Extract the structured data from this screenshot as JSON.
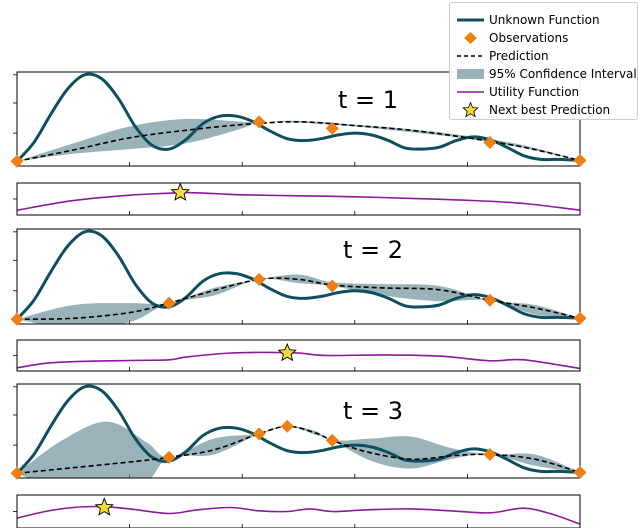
{
  "colors": {
    "unknown": "#0e4f5f",
    "observation": "#ef7f12",
    "prediction": "#000000",
    "ci": "#6f939d",
    "utility": "#8b1a9b",
    "star": "#f5dc38"
  },
  "legend": {
    "unknown": "Unknown Function",
    "observations": "Observations",
    "prediction": "Prediction",
    "ci": "95% Confidence Interval",
    "utility": "Utility Function",
    "next": "Next best Prediction"
  },
  "chart_data": [
    {
      "type": "line",
      "panel_label": "t = 1",
      "xlim": [
        0,
        1
      ],
      "ylim": [
        0,
        1
      ],
      "unknown": {
        "x": [
          0,
          0.03,
          0.06,
          0.09,
          0.12,
          0.15,
          0.18,
          0.21,
          0.24,
          0.27,
          0.3,
          0.33,
          0.36,
          0.39,
          0.42,
          0.45,
          0.48,
          0.51,
          0.54,
          0.57,
          0.6,
          0.63,
          0.66,
          0.69,
          0.72,
          0.75,
          0.78,
          0.81,
          0.84,
          0.87,
          0.9,
          0.93,
          0.96,
          1
        ],
        "y": [
          0.05,
          0.25,
          0.55,
          0.82,
          0.97,
          0.93,
          0.72,
          0.42,
          0.22,
          0.18,
          0.28,
          0.45,
          0.53,
          0.53,
          0.47,
          0.37,
          0.29,
          0.27,
          0.29,
          0.33,
          0.35,
          0.33,
          0.27,
          0.19,
          0.18,
          0.2,
          0.27,
          0.31,
          0.28,
          0.2,
          0.11,
          0.07,
          0.07,
          0.06
        ]
      },
      "prediction": {
        "x": [
          0,
          0.1,
          0.2,
          0.3,
          0.4,
          0.5,
          0.6,
          0.7,
          0.8,
          0.9,
          1
        ],
        "y": [
          0.05,
          0.17,
          0.3,
          0.38,
          0.44,
          0.47,
          0.43,
          0.38,
          0.3,
          0.2,
          0.06
        ]
      },
      "ci": {
        "x": [
          0,
          0.1,
          0.2,
          0.3,
          0.4,
          0.43,
          0.5,
          0.6,
          0.7,
          0.8,
          0.9,
          1
        ],
        "lower": [
          0.05,
          0.13,
          0.18,
          0.24,
          0.4,
          0.47,
          0.46,
          0.42,
          0.36,
          0.29,
          0.19,
          0.06
        ],
        "upper": [
          0.05,
          0.24,
          0.42,
          0.5,
          0.47,
          0.47,
          0.48,
          0.44,
          0.39,
          0.32,
          0.22,
          0.06
        ]
      },
      "observations": {
        "x": [
          0,
          0.43,
          0.56,
          0.84,
          1
        ],
        "y": [
          0.05,
          0.47,
          0.4,
          0.25,
          0.06
        ]
      },
      "utility": {
        "x": [
          0,
          0.1,
          0.2,
          0.27,
          0.3,
          0.35,
          0.4,
          0.5,
          0.6,
          0.7,
          0.8,
          0.9,
          1
        ],
        "y": [
          0.15,
          0.45,
          0.62,
          0.68,
          0.7,
          0.67,
          0.63,
          0.6,
          0.57,
          0.52,
          0.46,
          0.36,
          0.15
        ]
      },
      "next_best": {
        "x": 0.29,
        "y": 0.7
      }
    },
    {
      "type": "line",
      "panel_label": "t = 2",
      "xlim": [
        0,
        1
      ],
      "ylim": [
        0,
        1
      ],
      "unknown": {
        "x": [
          0,
          0.03,
          0.06,
          0.09,
          0.12,
          0.15,
          0.18,
          0.21,
          0.24,
          0.27,
          0.3,
          0.33,
          0.36,
          0.39,
          0.42,
          0.45,
          0.48,
          0.51,
          0.54,
          0.57,
          0.6,
          0.63,
          0.66,
          0.69,
          0.72,
          0.75,
          0.78,
          0.81,
          0.84,
          0.87,
          0.9,
          0.93,
          0.96,
          1
        ],
        "y": [
          0.05,
          0.25,
          0.55,
          0.82,
          0.97,
          0.93,
          0.72,
          0.42,
          0.22,
          0.18,
          0.28,
          0.45,
          0.53,
          0.53,
          0.47,
          0.37,
          0.29,
          0.27,
          0.29,
          0.33,
          0.35,
          0.33,
          0.27,
          0.19,
          0.18,
          0.2,
          0.27,
          0.31,
          0.28,
          0.2,
          0.11,
          0.07,
          0.07,
          0.06
        ]
      },
      "prediction": {
        "x": [
          0,
          0.1,
          0.2,
          0.27,
          0.33,
          0.43,
          0.5,
          0.56,
          0.65,
          0.75,
          0.84,
          0.92,
          1
        ],
        "y": [
          0.05,
          0.06,
          0.12,
          0.22,
          0.32,
          0.47,
          0.47,
          0.41,
          0.38,
          0.36,
          0.25,
          0.17,
          0.06
        ]
      },
      "ci": {
        "x": [
          0,
          0.1,
          0.2,
          0.27,
          0.35,
          0.43,
          0.5,
          0.56,
          0.65,
          0.75,
          0.84,
          0.92,
          1
        ],
        "lower": [
          0.05,
          -0.05,
          0.02,
          0.22,
          0.3,
          0.47,
          0.43,
          0.4,
          0.3,
          0.24,
          0.25,
          0.1,
          0.06
        ],
        "upper": [
          0.05,
          0.2,
          0.22,
          0.22,
          0.38,
          0.47,
          0.52,
          0.44,
          0.42,
          0.4,
          0.25,
          0.2,
          0.06
        ]
      },
      "observations": {
        "x": [
          0,
          0.27,
          0.43,
          0.56,
          0.84,
          1
        ],
        "y": [
          0.05,
          0.22,
          0.47,
          0.4,
          0.25,
          0.06
        ]
      },
      "utility": {
        "x": [
          0,
          0.05,
          0.1,
          0.2,
          0.27,
          0.3,
          0.38,
          0.45,
          0.5,
          0.55,
          0.65,
          0.75,
          0.84,
          0.9,
          1
        ],
        "y": [
          0.1,
          0.25,
          0.3,
          0.34,
          0.36,
          0.45,
          0.58,
          0.6,
          0.58,
          0.5,
          0.52,
          0.48,
          0.33,
          0.36,
          0.08
        ]
      },
      "next_best": {
        "x": 0.48,
        "y": 0.58
      }
    },
    {
      "type": "line",
      "panel_label": "t = 3",
      "xlim": [
        0,
        1
      ],
      "ylim": [
        0,
        1
      ],
      "unknown": {
        "x": [
          0,
          0.03,
          0.06,
          0.09,
          0.12,
          0.15,
          0.18,
          0.21,
          0.24,
          0.27,
          0.3,
          0.33,
          0.36,
          0.39,
          0.42,
          0.45,
          0.48,
          0.51,
          0.54,
          0.57,
          0.6,
          0.63,
          0.66,
          0.69,
          0.72,
          0.75,
          0.78,
          0.81,
          0.84,
          0.87,
          0.9,
          0.93,
          0.96,
          1
        ],
        "y": [
          0.05,
          0.25,
          0.55,
          0.82,
          0.97,
          0.93,
          0.72,
          0.42,
          0.22,
          0.18,
          0.28,
          0.45,
          0.53,
          0.53,
          0.47,
          0.37,
          0.29,
          0.27,
          0.29,
          0.33,
          0.35,
          0.33,
          0.27,
          0.19,
          0.18,
          0.2,
          0.27,
          0.31,
          0.28,
          0.2,
          0.11,
          0.07,
          0.07,
          0.06
        ]
      },
      "prediction": {
        "x": [
          0,
          0.1,
          0.2,
          0.27,
          0.35,
          0.43,
          0.48,
          0.53,
          0.56,
          0.62,
          0.7,
          0.78,
          0.84,
          0.92,
          1
        ],
        "y": [
          0.05,
          0.11,
          0.17,
          0.22,
          0.3,
          0.47,
          0.55,
          0.48,
          0.4,
          0.28,
          0.2,
          0.24,
          0.25,
          0.2,
          0.06
        ]
      },
      "ci": {
        "x": [
          0,
          0.08,
          0.16,
          0.23,
          0.27,
          0.35,
          0.43,
          0.48,
          0.53,
          0.56,
          0.63,
          0.7,
          0.77,
          0.84,
          0.92,
          1
        ],
        "lower": [
          0.05,
          -0.14,
          -0.24,
          -0.05,
          0.22,
          0.25,
          0.47,
          0.55,
          0.46,
          0.4,
          0.18,
          0.1,
          0.2,
          0.25,
          0.13,
          0.06
        ],
        "upper": [
          0.05,
          0.4,
          0.6,
          0.38,
          0.22,
          0.42,
          0.47,
          0.55,
          0.5,
          0.4,
          0.42,
          0.44,
          0.32,
          0.25,
          0.25,
          0.06
        ]
      },
      "observations": {
        "x": [
          0,
          0.27,
          0.43,
          0.48,
          0.56,
          0.84,
          1
        ],
        "y": [
          0.05,
          0.22,
          0.47,
          0.55,
          0.4,
          0.25,
          0.06
        ]
      },
      "utility": {
        "x": [
          0,
          0.05,
          0.1,
          0.15,
          0.2,
          0.27,
          0.32,
          0.38,
          0.43,
          0.48,
          0.52,
          0.56,
          0.62,
          0.7,
          0.77,
          0.84,
          0.9,
          0.95,
          1
        ],
        "y": [
          0.3,
          0.5,
          0.62,
          0.65,
          0.58,
          0.44,
          0.55,
          0.62,
          0.52,
          0.5,
          0.58,
          0.5,
          0.55,
          0.58,
          0.52,
          0.46,
          0.6,
          0.42,
          0.12
        ]
      },
      "next_best": {
        "x": 0.155,
        "y": 0.62
      }
    }
  ]
}
